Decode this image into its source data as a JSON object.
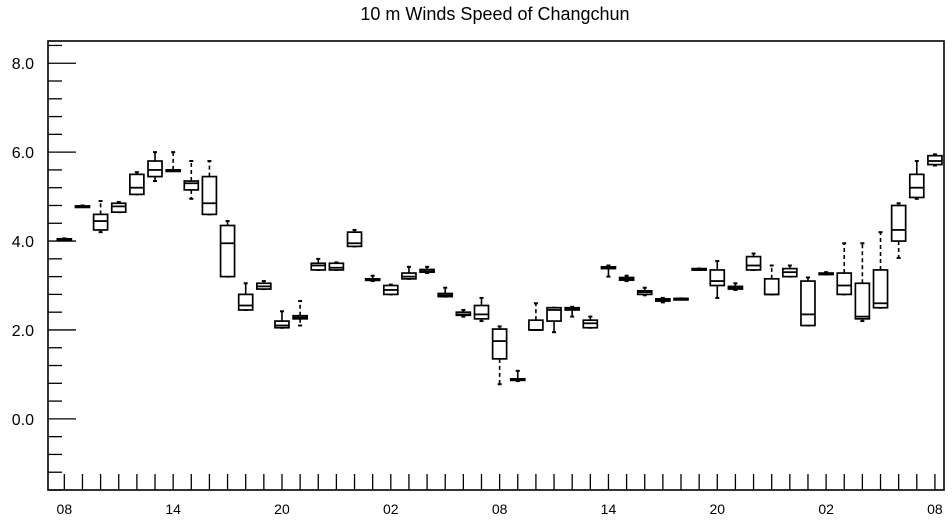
{
  "chart_data": {
    "type": "boxplot",
    "title": "10 m Winds Speed of Changchun",
    "xlabel": "",
    "ylabel": "",
    "ylim": [
      -1.6,
      8.5
    ],
    "yticks": [
      0.0,
      2.0,
      4.0,
      6.0,
      8.0
    ],
    "ytick_labels": [
      "0.0",
      "2.0",
      "4.0",
      "6.0",
      "8.0"
    ],
    "xlim": [
      -0.9,
      48.5
    ],
    "xticks": [
      0,
      6,
      12,
      18,
      24,
      30,
      36,
      42,
      48
    ],
    "xtick_labels": [
      "08",
      "14",
      "20",
      "02",
      "08",
      "14",
      "20",
      "02",
      "08"
    ],
    "grid": false,
    "legend": "none",
    "series": [
      {
        "values": [
          {
            "x": 0,
            "min": 4.02,
            "q1": 4.02,
            "median": 4.04,
            "q3": 4.05,
            "max": 4.06
          },
          {
            "x": 1,
            "min": 4.77,
            "q1": 4.77,
            "median": 4.78,
            "q3": 4.79,
            "max": 4.8
          },
          {
            "x": 2,
            "min": 4.2,
            "q1": 4.25,
            "median": 4.45,
            "q3": 4.6,
            "max": 4.9
          },
          {
            "x": 3,
            "min": 4.65,
            "q1": 4.65,
            "median": 4.78,
            "q3": 4.85,
            "max": 4.88
          },
          {
            "x": 4,
            "min": 5.05,
            "q1": 5.05,
            "median": 5.2,
            "q3": 5.5,
            "max": 5.55
          },
          {
            "x": 5,
            "min": 5.35,
            "q1": 5.45,
            "median": 5.6,
            "q3": 5.8,
            "max": 6.0
          },
          {
            "x": 6,
            "min": 5.6,
            "q1": 5.6,
            "median": 5.6,
            "q3": 5.6,
            "max": 6.0
          },
          {
            "x": 7,
            "min": 4.95,
            "q1": 5.15,
            "median": 5.3,
            "q3": 5.35,
            "max": 5.8
          },
          {
            "x": 8,
            "min": 4.6,
            "q1": 4.6,
            "median": 4.85,
            "q3": 5.45,
            "max": 5.8
          },
          {
            "x": 9,
            "min": 3.2,
            "q1": 3.2,
            "median": 3.95,
            "q3": 4.35,
            "max": 4.45
          },
          {
            "x": 10,
            "min": 2.45,
            "q1": 2.45,
            "median": 2.55,
            "q3": 2.8,
            "max": 3.05
          },
          {
            "x": 11,
            "min": 2.92,
            "q1": 2.92,
            "median": 2.98,
            "q3": 3.05,
            "max": 3.1
          },
          {
            "x": 12,
            "min": 2.05,
            "q1": 2.05,
            "median": 2.1,
            "q3": 2.2,
            "max": 2.42
          },
          {
            "x": 13,
            "min": 2.1,
            "q1": 2.25,
            "median": 2.28,
            "q3": 2.32,
            "max": 2.65
          },
          {
            "x": 14,
            "min": 3.35,
            "q1": 3.35,
            "median": 3.45,
            "q3": 3.5,
            "max": 3.6
          },
          {
            "x": 15,
            "min": 3.35,
            "q1": 3.35,
            "median": 3.4,
            "q3": 3.5,
            "max": 3.52
          },
          {
            "x": 16,
            "min": 3.88,
            "q1": 3.88,
            "median": 3.95,
            "q3": 4.2,
            "max": 4.25
          },
          {
            "x": 17,
            "min": 3.1,
            "q1": 3.12,
            "median": 3.12,
            "q3": 3.15,
            "max": 3.22
          },
          {
            "x": 18,
            "min": 2.8,
            "q1": 2.8,
            "median": 2.9,
            "q3": 3.0,
            "max": 3.02
          },
          {
            "x": 19,
            "min": 3.15,
            "q1": 3.15,
            "median": 3.2,
            "q3": 3.28,
            "max": 3.42
          },
          {
            "x": 20,
            "min": 3.28,
            "q1": 3.3,
            "median": 3.32,
            "q3": 3.36,
            "max": 3.42
          },
          {
            "x": 21,
            "min": 2.75,
            "q1": 2.75,
            "median": 2.78,
            "q3": 2.82,
            "max": 2.95
          },
          {
            "x": 22,
            "min": 2.3,
            "q1": 2.33,
            "median": 2.35,
            "q3": 2.4,
            "max": 2.45
          },
          {
            "x": 23,
            "min": 2.2,
            "q1": 2.25,
            "median": 2.35,
            "q3": 2.55,
            "max": 2.72
          },
          {
            "x": 24,
            "min": 0.78,
            "q1": 1.35,
            "median": 1.75,
            "q3": 2.02,
            "max": 2.08
          },
          {
            "x": 25,
            "min": 0.85,
            "q1": 0.87,
            "median": 0.88,
            "q3": 0.9,
            "max": 1.08
          },
          {
            "x": 26,
            "min": 2.0,
            "q1": 2.0,
            "median": 2.0,
            "q3": 2.22,
            "max": 2.6
          },
          {
            "x": 27,
            "min": 1.95,
            "q1": 2.2,
            "median": 2.45,
            "q3": 2.5,
            "max": 2.5
          },
          {
            "x": 28,
            "min": 2.3,
            "q1": 2.45,
            "median": 2.48,
            "q3": 2.5,
            "max": 2.52
          },
          {
            "x": 29,
            "min": 2.05,
            "q1": 2.05,
            "median": 2.15,
            "q3": 2.22,
            "max": 2.3
          },
          {
            "x": 30,
            "min": 3.2,
            "q1": 3.38,
            "median": 3.4,
            "q3": 3.42,
            "max": 3.45
          },
          {
            "x": 31,
            "min": 3.1,
            "q1": 3.12,
            "median": 3.15,
            "q3": 3.18,
            "max": 3.22
          },
          {
            "x": 32,
            "min": 2.78,
            "q1": 2.8,
            "median": 2.85,
            "q3": 2.88,
            "max": 2.95
          },
          {
            "x": 33,
            "min": 2.62,
            "q1": 2.65,
            "median": 2.67,
            "q3": 2.7,
            "max": 2.72
          },
          {
            "x": 34,
            "min": 2.69,
            "q1": 2.69,
            "median": 2.7,
            "q3": 2.71,
            "max": 2.71
          },
          {
            "x": 35,
            "min": 3.35,
            "q1": 3.36,
            "median": 3.37,
            "q3": 3.38,
            "max": 3.38
          },
          {
            "x": 36,
            "min": 2.72,
            "q1": 3.0,
            "median": 3.1,
            "q3": 3.35,
            "max": 3.55
          },
          {
            "x": 37,
            "min": 2.9,
            "q1": 2.92,
            "median": 2.95,
            "q3": 2.98,
            "max": 3.05
          },
          {
            "x": 38,
            "min": 3.35,
            "q1": 3.35,
            "median": 3.45,
            "q3": 3.65,
            "max": 3.72
          },
          {
            "x": 39,
            "min": 2.8,
            "q1": 2.8,
            "median": 2.8,
            "q3": 3.15,
            "max": 3.45
          },
          {
            "x": 40,
            "min": 3.2,
            "q1": 3.2,
            "median": 3.3,
            "q3": 3.38,
            "max": 3.45
          },
          {
            "x": 41,
            "min": 2.1,
            "q1": 2.1,
            "median": 2.35,
            "q3": 3.1,
            "max": 3.18
          },
          {
            "x": 42,
            "min": 3.25,
            "q1": 3.26,
            "median": 3.27,
            "q3": 3.28,
            "max": 3.3
          },
          {
            "x": 43,
            "min": 2.8,
            "q1": 2.8,
            "median": 3.0,
            "q3": 3.28,
            "max": 3.95
          },
          {
            "x": 44,
            "min": 2.2,
            "q1": 2.25,
            "median": 2.3,
            "q3": 3.05,
            "max": 3.95
          },
          {
            "x": 45,
            "min": 2.5,
            "q1": 2.5,
            "median": 2.6,
            "q3": 3.35,
            "max": 4.2
          },
          {
            "x": 46,
            "min": 3.62,
            "q1": 4.0,
            "median": 4.25,
            "q3": 4.8,
            "max": 4.85
          },
          {
            "x": 47,
            "min": 4.95,
            "q1": 4.98,
            "median": 5.2,
            "q3": 5.5,
            "max": 5.8
          },
          {
            "x": 48,
            "min": 5.7,
            "q1": 5.72,
            "median": 5.8,
            "q3": 5.92,
            "max": 5.95
          }
        ]
      }
    ]
  }
}
